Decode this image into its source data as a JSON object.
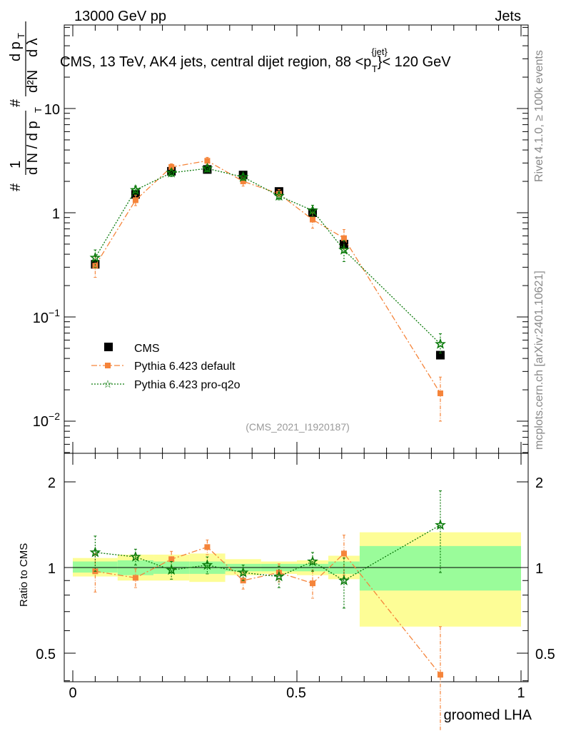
{
  "header": {
    "left": "13000 GeV pp",
    "right": "Jets"
  },
  "plot_title": "CMS, 13 TeV, AK4 jets, central dijet region, 88 <p",
  "plot_title_sup": "{jet}",
  "plot_title_sub": "T",
  "plot_title_end": "}< 120 GeV",
  "side_text_top": "Rivet 4.1.0, ≥ 100k events",
  "side_text_bottom": "mcplots.cern.ch [arXiv:2401.10621]",
  "analysis_id": "(CMS_2021_I1920187)",
  "ylabel_main": "1/N dN/dλ (per p_T)",
  "ylabel_ratio": "Ratio to CMS",
  "xlabel": "groomed LHA",
  "legend": [
    {
      "label": "CMS",
      "key": "cms"
    },
    {
      "label": "Pythia 6.423 default",
      "key": "default"
    },
    {
      "label": "Pythia 6.423 pro-q2o",
      "key": "proq2o"
    }
  ],
  "colors": {
    "cms": "#000000",
    "default": "#f5843a",
    "proq2o": "#0a7a0a",
    "band_yellow": "#fdfd96",
    "band_green": "#9afc9a"
  },
  "chart_data": [
    {
      "type": "scatter",
      "title": "CMS, 13 TeV, AK4 jets, central dijet region, 88 < pT(jet) < 120 GeV",
      "xlabel": "groomed LHA",
      "ylabel": "1/N dN/dλ",
      "xlim": [
        -0.04,
        1.01
      ],
      "ylim": [
        0.005,
        60
      ],
      "yscale": "log",
      "yticks": [
        "10^-2",
        "10^-1",
        "1",
        "10"
      ],
      "series": [
        {
          "name": "CMS",
          "x": [
            0.05,
            0.14,
            0.22,
            0.3,
            0.38,
            0.46,
            0.535,
            0.605,
            0.82
          ],
          "y": [
            0.32,
            1.5,
            2.5,
            2.6,
            2.3,
            1.6,
            1.0,
            0.5,
            0.043
          ]
        },
        {
          "name": "Pythia 6.423 default",
          "x": [
            0.05,
            0.14,
            0.22,
            0.3,
            0.38,
            0.46,
            0.535,
            0.605,
            0.82
          ],
          "y": [
            0.31,
            1.32,
            2.75,
            3.15,
            2.0,
            1.52,
            0.86,
            0.57,
            0.0185
          ],
          "err_lo": [
            0.07,
            0.15,
            0.2,
            0.25,
            0.2,
            0.15,
            0.15,
            0.12,
            0.0085
          ],
          "err_hi": [
            0.07,
            0.15,
            0.2,
            0.25,
            0.2,
            0.15,
            0.15,
            0.12,
            0.008
          ]
        },
        {
          "name": "Pythia 6.423 pro-q2o",
          "x": [
            0.05,
            0.14,
            0.22,
            0.3,
            0.38,
            0.46,
            0.535,
            0.605,
            0.82
          ],
          "y": [
            0.37,
            1.65,
            2.42,
            2.66,
            2.2,
            1.45,
            1.05,
            0.44,
            0.055
          ],
          "err_lo": [
            0.07,
            0.15,
            0.2,
            0.2,
            0.15,
            0.12,
            0.13,
            0.1,
            0.01
          ],
          "err_hi": [
            0.07,
            0.15,
            0.2,
            0.2,
            0.15,
            0.12,
            0.13,
            0.1,
            0.014
          ]
        }
      ]
    },
    {
      "type": "scatter",
      "title": "",
      "xlabel": "groomed LHA",
      "ylabel": "Ratio to CMS",
      "xlim": [
        -0.04,
        1.01
      ],
      "ylim": [
        0.35,
        2.55
      ],
      "yticks": [
        "0.5",
        "1",
        "2"
      ],
      "xticks": [
        "0",
        "0.5",
        "1"
      ],
      "bands": [
        {
          "x0": 0.0,
          "x1": 0.1,
          "yellow": [
            0.93,
            1.08
          ],
          "green": [
            0.96,
            1.05
          ]
        },
        {
          "x0": 0.1,
          "x1": 0.18,
          "yellow": [
            0.9,
            1.11
          ],
          "green": [
            0.94,
            1.06
          ]
        },
        {
          "x0": 0.18,
          "x1": 0.26,
          "yellow": [
            0.9,
            1.11
          ],
          "green": [
            0.95,
            1.05
          ]
        },
        {
          "x0": 0.26,
          "x1": 0.34,
          "yellow": [
            0.89,
            1.12
          ],
          "green": [
            0.95,
            1.05
          ]
        },
        {
          "x0": 0.34,
          "x1": 0.42,
          "yellow": [
            0.94,
            1.07
          ],
          "green": [
            0.97,
            1.03
          ]
        },
        {
          "x0": 0.42,
          "x1": 0.5,
          "yellow": [
            0.95,
            1.05
          ],
          "green": [
            0.97,
            1.03
          ]
        },
        {
          "x0": 0.5,
          "x1": 0.57,
          "yellow": [
            0.94,
            1.06
          ],
          "green": [
            0.97,
            1.03
          ]
        },
        {
          "x0": 0.57,
          "x1": 0.64,
          "yellow": [
            0.91,
            1.1
          ],
          "green": [
            0.95,
            1.05
          ]
        },
        {
          "x0": 0.64,
          "x1": 1.0,
          "yellow": [
            0.62,
            1.33
          ],
          "green": [
            0.83,
            1.19
          ]
        }
      ],
      "series": [
        {
          "name": "Pythia 6.423 default",
          "x": [
            0.05,
            0.14,
            0.22,
            0.3,
            0.38,
            0.46,
            0.535,
            0.605,
            0.82
          ],
          "y": [
            0.97,
            0.92,
            1.07,
            1.18,
            0.9,
            0.96,
            0.88,
            1.12,
            0.42
          ],
          "err_lo": [
            0.15,
            0.07,
            0.07,
            0.07,
            0.06,
            0.07,
            0.1,
            0.18,
            0.2
          ],
          "err_hi": [
            0.15,
            0.07,
            0.07,
            0.07,
            0.06,
            0.07,
            0.1,
            0.18,
            0.2
          ]
        },
        {
          "name": "Pythia 6.423 pro-q2o",
          "x": [
            0.05,
            0.14,
            0.22,
            0.3,
            0.38,
            0.46,
            0.535,
            0.605,
            0.82
          ],
          "y": [
            1.13,
            1.09,
            0.98,
            1.02,
            0.96,
            0.93,
            1.05,
            0.9,
            1.41
          ],
          "err_lo": [
            0.16,
            0.07,
            0.07,
            0.07,
            0.06,
            0.08,
            0.08,
            0.18,
            0.45
          ],
          "err_hi": [
            0.16,
            0.07,
            0.07,
            0.07,
            0.06,
            0.08,
            0.08,
            0.18,
            0.45
          ]
        }
      ]
    }
  ]
}
